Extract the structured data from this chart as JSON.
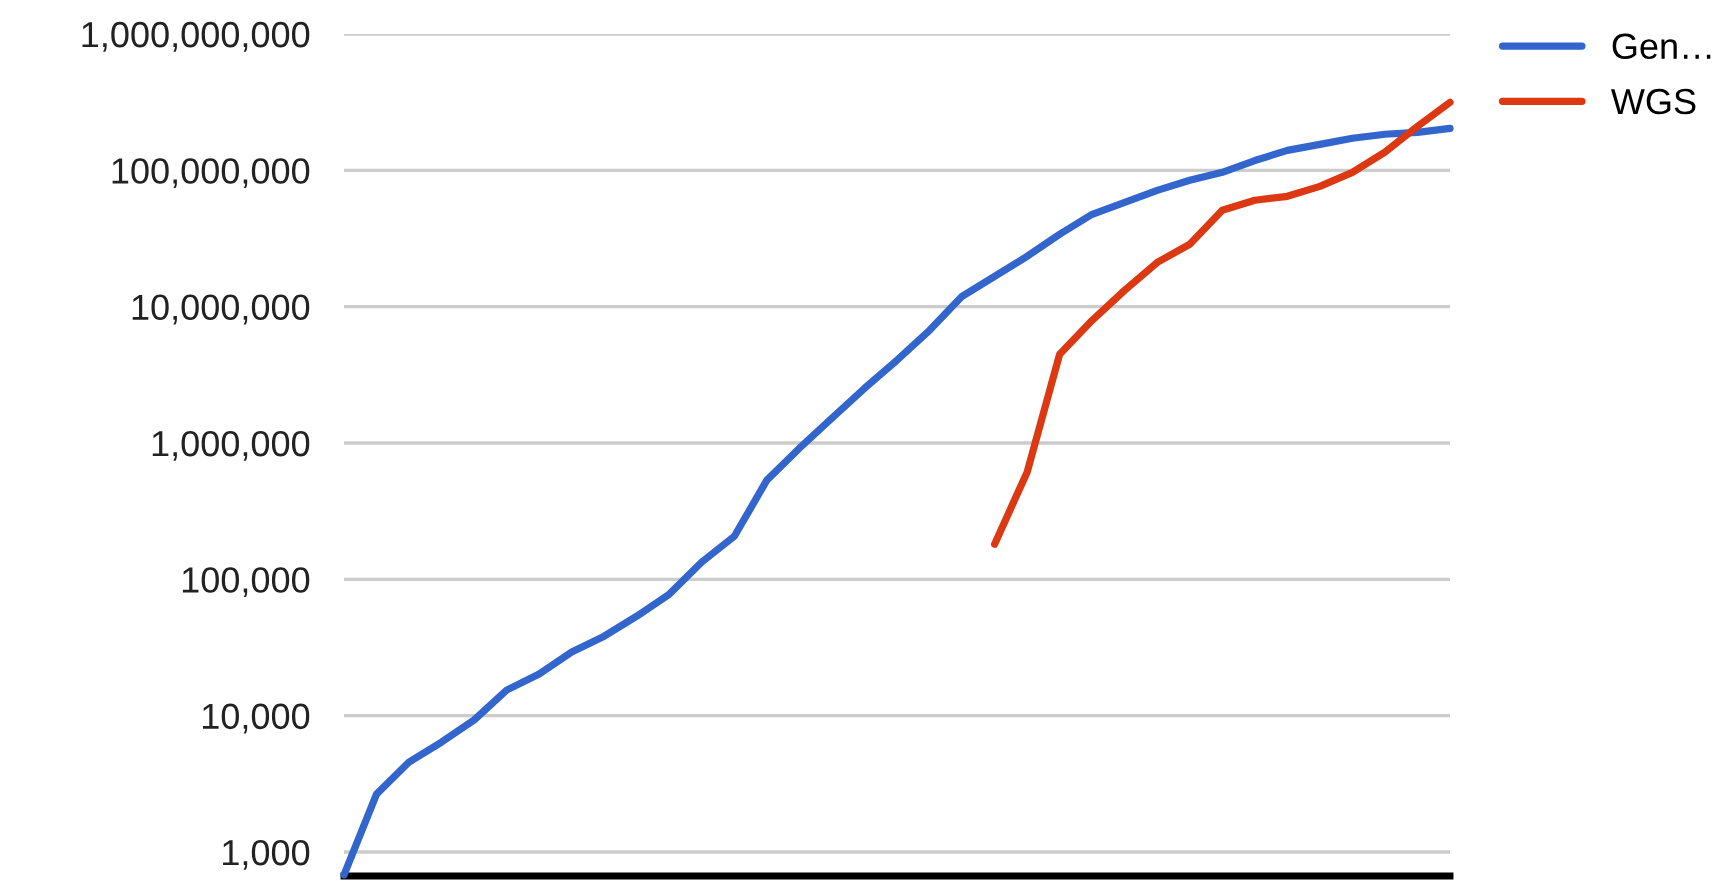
{
  "chart_data": {
    "type": "line",
    "categories": [
      null,
      null,
      null,
      null,
      null,
      null,
      null,
      null,
      null,
      null,
      null,
      null,
      null,
      null,
      null,
      null,
      null,
      null,
      null,
      null,
      null,
      null,
      null,
      null,
      null,
      null,
      null,
      null,
      null,
      null,
      null,
      null,
      null,
      null,
      null
    ],
    "series": [
      {
        "name": "Gen…",
        "color": "#3366cc",
        "values": [
          680,
          2660,
          4570,
          6400,
          9300,
          15400,
          20200,
          29300,
          38300,
          53700,
          77900,
          134000,
          207000,
          534000,
          916000,
          1520000,
          2520000,
          4050000,
          6710000,
          11900000,
          16700000,
          23400000,
          34000000,
          47600000,
          58200000,
          71300000,
          84500000,
          96700000,
          118000000,
          140000000,
          155000000,
          172000000,
          184000000,
          190000000,
          203000000
        ]
      },
      {
        "name": "WGS",
        "color": "#dc3912",
        "values": [
          null,
          null,
          null,
          null,
          null,
          null,
          null,
          null,
          null,
          null,
          null,
          null,
          null,
          null,
          null,
          null,
          null,
          null,
          null,
          null,
          181000,
          611000,
          4480000,
          7940000,
          13200000,
          21100000,
          28700000,
          50900000,
          60300000,
          64500000,
          76300000,
          96700000,
          136000000,
          210000000,
          315000000
        ]
      }
    ],
    "log": "y",
    "ylim": [
      667,
      1000000000
    ],
    "yticks": [
      {
        "value": 1000,
        "label": "1,000"
      },
      {
        "value": 10000,
        "label": "10,000"
      },
      {
        "value": 100000,
        "label": "100,000"
      },
      {
        "value": 1000000,
        "label": "1,000,000"
      },
      {
        "value": 10000000,
        "label": "10,000,000"
      },
      {
        "value": 100000000,
        "label": "100,000,000"
      },
      {
        "value": 1000000000,
        "label": "1,000,000,000"
      }
    ],
    "tick_labels": "y",
    "grid": "y",
    "legend": "top right",
    "marker": "none",
    "line_style": "solid"
  }
}
